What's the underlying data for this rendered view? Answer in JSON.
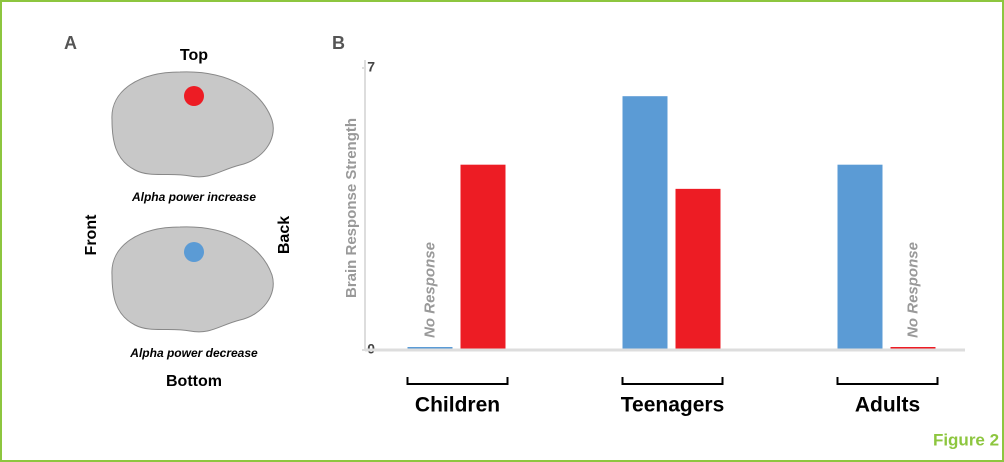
{
  "panel_a": {
    "label": "A",
    "top": "Top",
    "increase": "Alpha power increase",
    "front": "Front",
    "back": "Back",
    "decrease": "Alpha power decrease",
    "bottom": "Bottom"
  },
  "figure_label": "Figure 2",
  "chart_data": {
    "type": "bar",
    "panel_label": "B",
    "y_label": "Brain Response Strength",
    "categories": [
      "Children",
      "Teenagers",
      "Adults"
    ],
    "series": [
      {
        "color": "#5b9bd5",
        "values": [
          0,
          6.3,
          4.6
        ]
      },
      {
        "color": "#ed1c24",
        "values": [
          4.6,
          4.0,
          0
        ]
      }
    ],
    "annotations": [
      "No Response",
      "No Response"
    ],
    "ylim": [
      0,
      7
    ],
    "yticks": [
      0,
      7
    ]
  }
}
